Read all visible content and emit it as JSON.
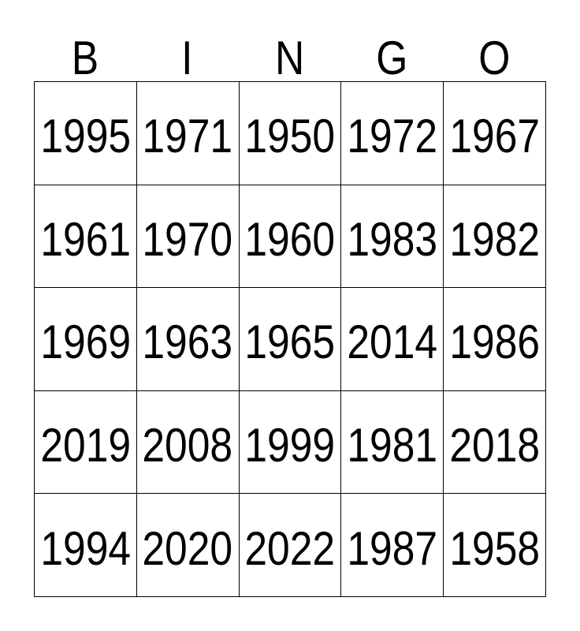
{
  "card": {
    "title": "BINGO",
    "header_letters": [
      "B",
      "I",
      "N",
      "G",
      "O"
    ],
    "rows": [
      [
        "1995",
        "1971",
        "1950",
        "1972",
        "1967"
      ],
      [
        "1961",
        "1970",
        "1960",
        "1983",
        "1982"
      ],
      [
        "1969",
        "1963",
        "1965",
        "2014",
        "1986"
      ],
      [
        "2019",
        "2008",
        "1999",
        "1981",
        "2018"
      ],
      [
        "1994",
        "2020",
        "2022",
        "1987",
        "1958"
      ]
    ],
    "colors": {
      "text": "#000000",
      "border": "#000000",
      "background": "#ffffff"
    }
  }
}
